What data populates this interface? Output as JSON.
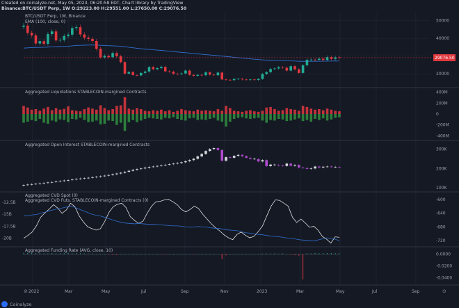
{
  "header": {
    "line1": "Created on coinalyze.net, May 05, 2023, 06:20:58 EDT, Chart library by TradingView",
    "line2": "Binance:BTC/USDT Perp, 1W O:29223.00 H:29551.00 L:27650.00 C:29076.50"
  },
  "footer": {
    "brand": "Coinalyze",
    "reset_icon": "⊘",
    "axis_icon": "⊙"
  },
  "colors": {
    "bg": "#151924",
    "up": "#22ab94",
    "down": "#e0383f",
    "purple": "#b04bd0",
    "ema": "#2f6fd0",
    "cvd_spot": "#e0e0e0",
    "cvd_futs": "#2f6fd0",
    "price_tag": "#e0383f",
    "grid": "#232837",
    "sep": "#3a3f4d",
    "oi_neutral": "#d7d9de"
  },
  "chart_data": [
    {
      "type": "candlestick",
      "title": "BTC/USDT Perp, 1W, Binance",
      "subtitle": "EMA (100, close, 0)",
      "price_label": "29076.50",
      "x_labels": [
        "2022",
        "Mar",
        "May",
        "Jul",
        "Sep",
        "Nov",
        "2023",
        "Mar",
        "May",
        "Jul",
        "Sep"
      ],
      "y_ticks": [
        50000,
        40000,
        30000,
        20000
      ],
      "ylim": [
        13000,
        53000
      ],
      "close": [
        47200,
        43100,
        41700,
        37100,
        38400,
        36900,
        42400,
        43900,
        38800,
        39100,
        41300,
        42100,
        45800,
        46300,
        42200,
        40400,
        39700,
        38500,
        34100,
        29300,
        30100,
        29400,
        31700,
        29900,
        26600,
        20100,
        21000,
        19300,
        19100,
        20500,
        21300,
        23800,
        22600,
        23200,
        23900,
        21400,
        21200,
        20000,
        19800,
        20200,
        21800,
        19400,
        18900,
        19400,
        19200,
        20800,
        19500,
        19200,
        20700,
        16800,
        16600,
        16400,
        17100,
        17200,
        16800,
        16700,
        16800,
        16500,
        17100,
        19900,
        20900,
        22700,
        23000,
        23700,
        23400,
        21800,
        24300,
        22500,
        20500,
        24800,
        27900,
        28000,
        27900,
        28500,
        27800,
        29400,
        28400,
        29300,
        29100
      ]
    },
    {
      "type": "bar",
      "title": "Aggregated Liquidations STABLECOIN-margined Contracts",
      "y_ticks": [
        "400M",
        "200M",
        "0",
        "-200M",
        "-400M"
      ],
      "ylim": [
        -460000000,
        460000000
      ],
      "values_pos": [
        150,
        120,
        80,
        90,
        60,
        100,
        130,
        70,
        110,
        80,
        95,
        140,
        70,
        60,
        50,
        90,
        120,
        100,
        80,
        160,
        110,
        70,
        90,
        150,
        160,
        310,
        100,
        80,
        110,
        90,
        60,
        50,
        70,
        60,
        80,
        50,
        70,
        40,
        60,
        90,
        70,
        60,
        50,
        80,
        60,
        70,
        60,
        50,
        90,
        60,
        150,
        110,
        60,
        50,
        40,
        60,
        70,
        50,
        40,
        60,
        120,
        130,
        90,
        60,
        70,
        110,
        90,
        80,
        60,
        150,
        130,
        100,
        80,
        90,
        70,
        100,
        80,
        60,
        50
      ],
      "values_neg": [
        160,
        140,
        110,
        130,
        90,
        160,
        180,
        120,
        140,
        100,
        110,
        150,
        90,
        100,
        70,
        110,
        150,
        140,
        120,
        190,
        180,
        120,
        130,
        200,
        160,
        310,
        150,
        110,
        150,
        120,
        90,
        70,
        80,
        90,
        100,
        70,
        80,
        60,
        90,
        110,
        120,
        80,
        70,
        110,
        100,
        110,
        90,
        70,
        120,
        140,
        230,
        140,
        90,
        70,
        60,
        80,
        90,
        80,
        70,
        120,
        160,
        110,
        120,
        90,
        100,
        130,
        120,
        100,
        80,
        130,
        110,
        140,
        90,
        110,
        80,
        120,
        100,
        70,
        60
      ]
    },
    {
      "type": "candlestick",
      "title": "Aggregated Open Interest STABLECOIN-margined Contracts",
      "y_ticks": [
        "300K",
        "200K",
        "100K"
      ],
      "ylim": [
        90000,
        330000
      ],
      "values": [
        115000,
        117000,
        119000,
        121000,
        123000,
        126000,
        128000,
        130000,
        133000,
        135000,
        138000,
        140000,
        143000,
        146000,
        148000,
        150000,
        152000,
        155000,
        157000,
        160000,
        163000,
        166000,
        170000,
        174000,
        178000,
        183000,
        188000,
        193000,
        197000,
        200000,
        204000,
        208000,
        210000,
        213000,
        216000,
        219000,
        222000,
        225000,
        228000,
        232000,
        237000,
        243000,
        250000,
        262000,
        275000,
        290000,
        300000,
        305000,
        295000,
        240000,
        258000,
        255000,
        265000,
        270000,
        263000,
        255000,
        250000,
        248000,
        236000,
        243000,
        212000,
        220000,
        218000,
        215000,
        213000,
        225000,
        214000,
        218000,
        205000,
        202000,
        198000,
        200000,
        210000,
        205000,
        209000,
        210000,
        208000,
        207000,
        205000
      ]
    },
    {
      "type": "line",
      "title": "Aggregated CVD Spot (0)",
      "title2": "Aggregated CVD Futs. STABLECOIN-margined Contracts (0)",
      "y_ticks_left": [
        "-12.5B",
        "-15B",
        "-17.5B",
        "-20B"
      ],
      "y_ticks_right": [
        "-600",
        "-640",
        "-680",
        "-720"
      ],
      "series": [
        {
          "name": "Aggregated CVD Spot (0)",
          "ylim": [
            -21200000000,
            -11200000000
          ],
          "values": [
            -20000000000,
            -19400000000,
            -18700000000,
            -17400000000,
            -15600000000,
            -14700000000,
            -13900000000,
            -13000000000,
            -13700000000,
            -14800000000,
            -14100000000,
            -12700000000,
            -13400000000,
            -15300000000,
            -16600000000,
            -17600000000,
            -18000000000,
            -18300000000,
            -18000000000,
            -16500000000,
            -14600000000,
            -13400000000,
            -12900000000,
            -12700000000,
            -13600000000,
            -15500000000,
            -16300000000,
            -16900000000,
            -16400000000,
            -14700000000,
            -13300000000,
            -12400000000,
            -12300000000,
            -12000000000,
            -11900000000,
            -12400000000,
            -13000000000,
            -14000000000,
            -14500000000,
            -14000000000,
            -13300000000,
            -13800000000,
            -15000000000,
            -16000000000,
            -17000000000,
            -17800000000,
            -18500000000,
            -19300000000,
            -19900000000,
            -20300000000,
            -19200000000,
            -18700000000,
            -19400000000,
            -19900000000,
            -19600000000,
            -18600000000,
            -17400000000,
            -15300000000,
            -13300000000,
            -12000000000,
            -12100000000,
            -12700000000,
            -13300000000,
            -15600000000,
            -16700000000,
            -16000000000,
            -16800000000,
            -17700000000,
            -17500000000,
            -18300000000,
            -19600000000,
            -20200000000,
            -21000000000,
            -19700000000,
            -19800000000
          ]
        },
        {
          "name": "Aggregated CVD Futs. STABLECOIN-margined Contracts (0)",
          "ylim": [
            -730,
            -590
          ],
          "values": [
            -648,
            -647,
            -645,
            -644,
            -640,
            -637,
            -633,
            -630,
            -627,
            -625,
            -622,
            -620,
            -623,
            -628,
            -633,
            -638,
            -643,
            -646,
            -648,
            -652,
            -656,
            -660,
            -664,
            -667,
            -669,
            -670,
            -671,
            -670,
            -671,
            -672,
            -672,
            -673,
            -674,
            -675,
            -676,
            -677,
            -677,
            -678,
            -680,
            -681,
            -680,
            -679,
            -680,
            -681,
            -683,
            -684,
            -685,
            -687,
            -689,
            -690,
            -691,
            -694,
            -697,
            -698,
            -700,
            -702,
            -703,
            -705,
            -707,
            -708,
            -709,
            -711,
            -713,
            -714,
            -716,
            -718,
            -719,
            -720,
            -721,
            -718,
            -715,
            -712,
            -713,
            -716,
            -720
          ]
        }
      ]
    },
    {
      "type": "bar",
      "title": "Aggregated Funding Rate (AVG, close, 10)",
      "y_ticks": [
        "0.0000",
        "-0.0200",
        "-0.0400"
      ],
      "ylim": [
        -0.05,
        0.01
      ],
      "values": [
        0.0021,
        0.0018,
        0.0017,
        0.0016,
        0.0015,
        0.0011,
        0.0012,
        0.0017,
        0.0014,
        0.0016,
        0.0018,
        0.002,
        0.0014,
        0.0016,
        0.0013,
        0.001,
        0.0008,
        0.0011,
        0.0007,
        0.0006,
        0.0004,
        -0.0008,
        -0.0012,
        -0.0015,
        0.0003,
        0.0002,
        0.0004,
        0.0006,
        0.0005,
        0.0003,
        0.0002,
        0.0003,
        0.0002,
        0.0001,
        -0.0005,
        -0.0003,
        0.0002,
        0.0004,
        0.0003,
        0.0002,
        0.0004,
        0.0006,
        -0.0006,
        0.0003,
        0.0004,
        0.0005,
        0.0002,
        0.0004,
        0.0001,
        -0.0085,
        -0.0021,
        0.0003,
        0.0002,
        0.0004,
        0.0006,
        0.0003,
        0.0004,
        0.0005,
        0.0007,
        0.0009,
        0.0012,
        0.001,
        0.0013,
        0.0007,
        0.0012,
        0.0006,
        -0.0012,
        -0.0018,
        -0.0025,
        -0.043,
        0.0016,
        0.0012,
        0.0019,
        0.0015,
        0.0016,
        0.0018,
        0.0017,
        0.0015,
        0.0014
      ]
    }
  ]
}
